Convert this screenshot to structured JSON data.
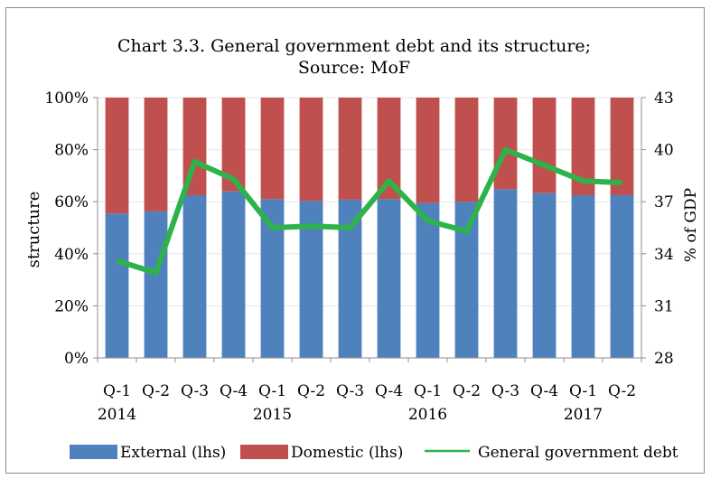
{
  "chart_data": {
    "type": "bar",
    "title_line1": "Chart 3.3. General government debt and its structure;",
    "title_line2": "Source: MoF",
    "ylabel_left": "structure",
    "ylabel_right": "% of GDP",
    "categories": [
      "Q-1",
      "Q-2",
      "Q-3",
      "Q-4",
      "Q-1",
      "Q-2",
      "Q-3",
      "Q-4",
      "Q-1",
      "Q-2",
      "Q-3",
      "Q-4",
      "Q-1",
      "Q-2"
    ],
    "year_labels": [
      {
        "label": "2014",
        "index": 0
      },
      {
        "label": "2015",
        "index": 4
      },
      {
        "label": "2016",
        "index": 8
      },
      {
        "label": "2017",
        "index": 12
      }
    ],
    "left_axis": {
      "min": 0,
      "max": 100,
      "ticks": [
        "0%",
        "20%",
        "40%",
        "60%",
        "80%",
        "100%"
      ]
    },
    "right_axis": {
      "min": 28,
      "max": 43,
      "ticks": [
        "28",
        "31",
        "34",
        "37",
        "40",
        "43"
      ]
    },
    "series": [
      {
        "name": "External (lhs)",
        "kind": "stacked-bar",
        "color": "#4f81bd",
        "values": [
          55.5,
          56.3,
          62.5,
          64.0,
          61.0,
          60.3,
          60.8,
          61.0,
          59.5,
          60.0,
          64.8,
          63.3,
          62.5,
          62.5
        ]
      },
      {
        "name": "Domestic (lhs)",
        "kind": "stacked-bar",
        "color": "#c0504d",
        "values": [
          44.5,
          43.7,
          37.5,
          36.0,
          39.0,
          39.7,
          39.2,
          39.0,
          40.5,
          40.0,
          35.2,
          36.7,
          37.5,
          37.5
        ]
      },
      {
        "name": "General government debt",
        "kind": "line",
        "axis": "right",
        "color": "#2eb34a",
        "values": [
          33.6,
          32.9,
          39.3,
          38.3,
          35.5,
          35.6,
          35.5,
          38.2,
          35.9,
          35.3,
          40.0,
          39.1,
          38.2,
          38.1
        ]
      }
    ]
  }
}
